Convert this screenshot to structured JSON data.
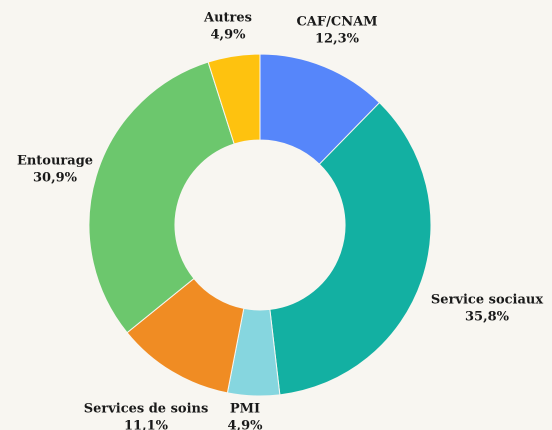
{
  "chart_data": {
    "type": "donut",
    "categories": [
      "CAF/CNAM",
      "Service sociaux",
      "PMI",
      "Services de soins",
      "Entourage",
      "Autres"
    ],
    "values": [
      12.3,
      35.8,
      4.9,
      11.1,
      30.9,
      4.9
    ],
    "value_labels": [
      "12,3%",
      "35,8%",
      "4,9%",
      "11,1%",
      "30,9%",
      "4,9%"
    ],
    "colors": [
      "#5686fa",
      "#13b0a2",
      "#86d6df",
      "#f08c23",
      "#6cc76d",
      "#fec20f"
    ]
  }
}
